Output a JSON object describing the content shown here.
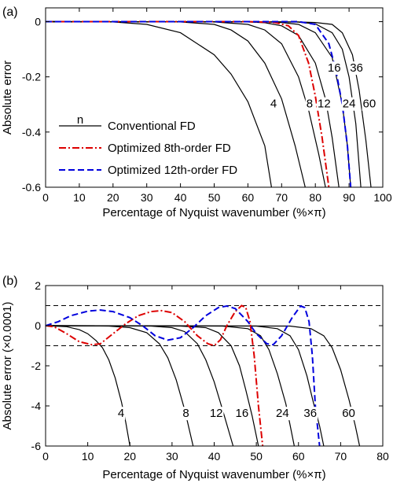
{
  "chart_data": [
    {
      "panel_label": "(a)",
      "type": "line",
      "xlabel": "Percentage of Nyquist wavenumber (%×π)",
      "ylabel": "Absolute error",
      "xlim": [
        0,
        100
      ],
      "ylim": [
        -0.6,
        0.05
      ],
      "xticks": [
        "0",
        "10",
        "20",
        "30",
        "40",
        "50",
        "60",
        "70",
        "80",
        "90",
        "100"
      ],
      "yticks": [
        "0",
        "-0.2",
        "-0.4",
        "-0.6"
      ],
      "grid": false,
      "legend_position": "center-left",
      "legend": [
        {
          "label": "Conventional FD",
          "style": "solid",
          "color": "#000000"
        },
        {
          "label": "Optimized 8th-order FD",
          "style": "dashdot",
          "color": "#dd0000"
        },
        {
          "label": "Optimized 12th-order FD",
          "style": "dashed",
          "color": "#0000dd"
        }
      ],
      "legend_marker_label": "n",
      "series": [
        {
          "label": "4",
          "style": "solid",
          "color": "#000000",
          "points": [
            [
              0,
              0
            ],
            [
              20,
              -0.001
            ],
            [
              30,
              -0.01
            ],
            [
              40,
              -0.04
            ],
            [
              50,
              -0.12
            ],
            [
              55,
              -0.19
            ],
            [
              60,
              -0.29
            ],
            [
              65,
              -0.45
            ],
            [
              67,
              -0.6
            ]
          ]
        },
        {
          "label": "8",
          "style": "solid",
          "color": "#000000",
          "points": [
            [
              0,
              0
            ],
            [
              40,
              -0.001
            ],
            [
              50,
              -0.01
            ],
            [
              55,
              -0.03
            ],
            [
              60,
              -0.07
            ],
            [
              65,
              -0.15
            ],
            [
              70,
              -0.28
            ],
            [
              74,
              -0.45
            ],
            [
              77,
              -0.6
            ]
          ]
        },
        {
          "label": "12",
          "style": "solid",
          "color": "#000000",
          "points": [
            [
              0,
              0
            ],
            [
              50,
              -0.001
            ],
            [
              60,
              -0.01
            ],
            [
              65,
              -0.03
            ],
            [
              70,
              -0.08
            ],
            [
              75,
              -0.2
            ],
            [
              78,
              -0.32
            ],
            [
              81,
              -0.48
            ],
            [
              83,
              -0.6
            ]
          ]
        },
        {
          "label": "16",
          "style": "solid",
          "color": "#000000",
          "points": [
            [
              0,
              0
            ],
            [
              60,
              -0.001
            ],
            [
              65,
              -0.004
            ],
            [
              70,
              -0.015
            ],
            [
              75,
              -0.05
            ],
            [
              80,
              -0.15
            ],
            [
              83,
              -0.28
            ],
            [
              85,
              -0.42
            ],
            [
              87,
              -0.6
            ]
          ]
        },
        {
          "label": "24",
          "style": "solid",
          "color": "#000000",
          "points": [
            [
              0,
              0
            ],
            [
              65,
              -0.001
            ],
            [
              70,
              -0.003
            ],
            [
              75,
              -0.01
            ],
            [
              80,
              -0.04
            ],
            [
              85,
              -0.13
            ],
            [
              88,
              -0.3
            ],
            [
              89.5,
              -0.45
            ],
            [
              90.5,
              -0.6
            ]
          ]
        },
        {
          "label": "36",
          "style": "solid",
          "color": "#000000",
          "points": [
            [
              0,
              0
            ],
            [
              70,
              -0.001
            ],
            [
              75,
              -0.002
            ],
            [
              80,
              -0.008
            ],
            [
              85,
              -0.04
            ],
            [
              88,
              -0.1
            ],
            [
              90,
              -0.2
            ],
            [
              92,
              -0.37
            ],
            [
              93.5,
              -0.6
            ]
          ]
        },
        {
          "label": "60",
          "style": "solid",
          "color": "#000000",
          "points": [
            [
              0,
              0
            ],
            [
              75,
              -0.001
            ],
            [
              80,
              -0.003
            ],
            [
              85,
              -0.01
            ],
            [
              88,
              -0.04
            ],
            [
              91,
              -0.12
            ],
            [
              93,
              -0.25
            ],
            [
              95,
              -0.43
            ],
            [
              96.5,
              -0.6
            ]
          ]
        },
        {
          "label": "",
          "style": "dashdot",
          "color": "#dd0000",
          "points": [
            [
              0,
              0
            ],
            [
              60,
              0
            ],
            [
              68,
              -0.003
            ],
            [
              72,
              -0.015
            ],
            [
              75,
              -0.05
            ],
            [
              78,
              -0.15
            ],
            [
              80,
              -0.27
            ],
            [
              82,
              -0.42
            ],
            [
              84,
              -0.6
            ]
          ]
        },
        {
          "label": "",
          "style": "dashed",
          "color": "#0000dd",
          "points": [
            [
              0,
              0
            ],
            [
              75,
              0
            ],
            [
              80,
              -0.01
            ],
            [
              84,
              -0.08
            ],
            [
              86,
              -0.17
            ],
            [
              88,
              -0.3
            ],
            [
              89.5,
              -0.45
            ],
            [
              90.5,
              -0.6
            ]
          ]
        }
      ]
    },
    {
      "panel_label": "(b)",
      "type": "line",
      "xlabel": "Percentage of Nyquist wavenumber (%×π)",
      "ylabel": "Absolute error (×0.0001)",
      "xlim": [
        0,
        80
      ],
      "ylim": [
        -6,
        2
      ],
      "xticks": [
        "0",
        "10",
        "20",
        "30",
        "40",
        "50",
        "60",
        "70",
        "80"
      ],
      "yticks": [
        "2",
        "0",
        "-2",
        "-4",
        "-6"
      ],
      "grid": false,
      "reference_lines": [
        1,
        -1
      ],
      "series": [
        {
          "label": "4",
          "style": "solid",
          "color": "#000000",
          "points": [
            [
              0,
              0
            ],
            [
              5,
              -0.05
            ],
            [
              8,
              -0.2
            ],
            [
              10,
              -0.4
            ],
            [
              12,
              -0.75
            ],
            [
              13.5,
              -1.1
            ],
            [
              15,
              -1.7
            ],
            [
              16.5,
              -2.6
            ],
            [
              18,
              -3.8
            ],
            [
              19,
              -4.8
            ],
            [
              20,
              -6
            ]
          ]
        },
        {
          "label": "8",
          "style": "solid",
          "color": "#000000",
          "points": [
            [
              0,
              0
            ],
            [
              15,
              -0.02
            ],
            [
              20,
              -0.1
            ],
            [
              24,
              -0.35
            ],
            [
              27,
              -0.9
            ],
            [
              29,
              -1.6
            ],
            [
              31,
              -2.7
            ],
            [
              33,
              -4.2
            ],
            [
              35,
              -6
            ]
          ]
        },
        {
          "label": "12",
          "style": "solid",
          "color": "#000000",
          "points": [
            [
              0,
              0
            ],
            [
              25,
              -0.02
            ],
            [
              30,
              -0.1
            ],
            [
              33,
              -0.3
            ],
            [
              36,
              -0.9
            ],
            [
              38,
              -1.7
            ],
            [
              40,
              -2.8
            ],
            [
              42,
              -4.2
            ],
            [
              44.5,
              -6
            ]
          ]
        },
        {
          "label": "16",
          "style": "solid",
          "color": "#000000",
          "points": [
            [
              0,
              0
            ],
            [
              32,
              -0.02
            ],
            [
              38,
              -0.1
            ],
            [
              41,
              -0.35
            ],
            [
              44,
              -1.0
            ],
            [
              46,
              -2.0
            ],
            [
              47.5,
              -3.2
            ],
            [
              49,
              -4.5
            ],
            [
              50.5,
              -6
            ]
          ]
        },
        {
          "label": "24",
          "style": "solid",
          "color": "#000000",
          "points": [
            [
              0,
              0
            ],
            [
              42,
              -0.02
            ],
            [
              48,
              -0.15
            ],
            [
              51,
              -0.5
            ],
            [
              53,
              -1.2
            ],
            [
              55,
              -2.4
            ],
            [
              57,
              -3.9
            ],
            [
              59,
              -6
            ]
          ]
        },
        {
          "label": "36",
          "style": "solid",
          "color": "#000000",
          "points": [
            [
              0,
              0
            ],
            [
              50,
              -0.02
            ],
            [
              55,
              -0.15
            ],
            [
              58,
              -0.5
            ],
            [
              60,
              -1.2
            ],
            [
              62,
              -2.5
            ],
            [
              63.5,
              -3.8
            ],
            [
              65,
              -5.0
            ],
            [
              66,
              -6
            ]
          ]
        },
        {
          "label": "60",
          "style": "solid",
          "color": "#000000",
          "points": [
            [
              0,
              0
            ],
            [
              58,
              -0.02
            ],
            [
              63,
              -0.15
            ],
            [
              66,
              -0.5
            ],
            [
              68,
              -1.1
            ],
            [
              70,
              -2.2
            ],
            [
              72,
              -3.7
            ],
            [
              73.5,
              -5.0
            ],
            [
              74.5,
              -6
            ]
          ]
        },
        {
          "label": "",
          "style": "dashdot",
          "color": "#dd0000",
          "points": [
            [
              0,
              0
            ],
            [
              2,
              -0.05
            ],
            [
              5,
              -0.4
            ],
            [
              8,
              -0.8
            ],
            [
              11,
              -0.95
            ],
            [
              13,
              -0.9
            ],
            [
              16,
              -0.4
            ],
            [
              19,
              0.1
            ],
            [
              22,
              0.5
            ],
            [
              25,
              0.7
            ],
            [
              27.5,
              0.75
            ],
            [
              30,
              0.65
            ],
            [
              33,
              0.2
            ],
            [
              36,
              -0.5
            ],
            [
              38.5,
              -0.9
            ],
            [
              40,
              -1.0
            ],
            [
              41.5,
              -0.7
            ],
            [
              43,
              0
            ],
            [
              45,
              0.7
            ],
            [
              46.5,
              1.0
            ],
            [
              47.5,
              0.9
            ],
            [
              48.5,
              0.2
            ],
            [
              49.5,
              -1.5
            ],
            [
              50.5,
              -4
            ],
            [
              51.5,
              -6
            ]
          ]
        },
        {
          "label": "",
          "style": "dashed",
          "color": "#0000dd",
          "points": [
            [
              0,
              0
            ],
            [
              3,
              0.2
            ],
            [
              6,
              0.5
            ],
            [
              10,
              0.72
            ],
            [
              13,
              0.78
            ],
            [
              16,
              0.7
            ],
            [
              20,
              0.4
            ],
            [
              23,
              0
            ],
            [
              26,
              -0.5
            ],
            [
              29,
              -0.72
            ],
            [
              32,
              -0.6
            ],
            [
              35,
              -0.1
            ],
            [
              38,
              0.5
            ],
            [
              41,
              0.9
            ],
            [
              43,
              0.98
            ],
            [
              45,
              0.85
            ],
            [
              48,
              0.2
            ],
            [
              50,
              -0.4
            ],
            [
              52.5,
              -0.9
            ],
            [
              54,
              -0.95
            ],
            [
              56,
              -0.5
            ],
            [
              58.5,
              0.4
            ],
            [
              60.5,
              0.98
            ],
            [
              61.5,
              0.9
            ],
            [
              62.5,
              0.2
            ],
            [
              63.3,
              -1.5
            ],
            [
              64,
              -4
            ],
            [
              65,
              -6
            ]
          ]
        }
      ]
    }
  ]
}
